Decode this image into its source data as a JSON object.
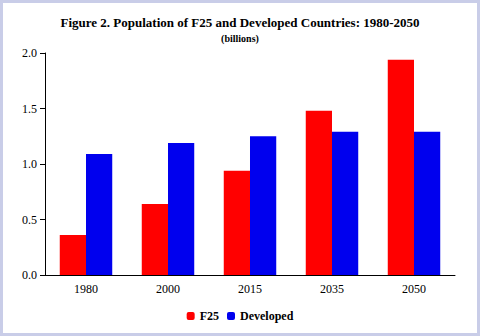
{
  "chart_data": {
    "type": "bar",
    "title": "Figure 2. Population of F25 and Developed Countries: 1980-2050",
    "subtitle": "(billions)",
    "categories": [
      "1980",
      "2000",
      "2015",
      "2035",
      "2050"
    ],
    "series": [
      {
        "name": "F25",
        "color": "#ff0000",
        "values": [
          0.36,
          0.64,
          0.94,
          1.48,
          1.94
        ]
      },
      {
        "name": "Developed",
        "color": "#0000ee",
        "values": [
          1.09,
          1.19,
          1.25,
          1.29,
          1.29
        ]
      }
    ],
    "ylim": [
      0,
      2
    ],
    "yticks": [
      {
        "value": 0,
        "label": "0.0"
      },
      0.5,
      {
        "value": 1,
        "label": "1.0"
      },
      1.5,
      {
        "value": 2,
        "label": "2.0"
      }
    ],
    "grid": false,
    "legend": "bottom"
  }
}
